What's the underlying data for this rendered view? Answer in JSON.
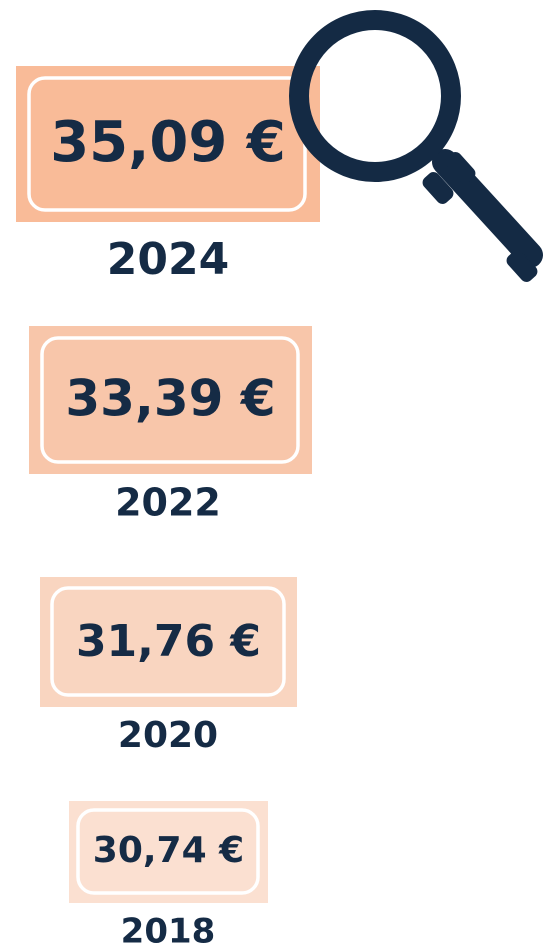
{
  "items": [
    {
      "price": "35,09 €",
      "year": "2024"
    },
    {
      "price": "33,39 €",
      "year": "2022"
    },
    {
      "price": "31,76 €",
      "year": "2020"
    },
    {
      "price": "30,74 €",
      "year": "2018"
    }
  ]
}
